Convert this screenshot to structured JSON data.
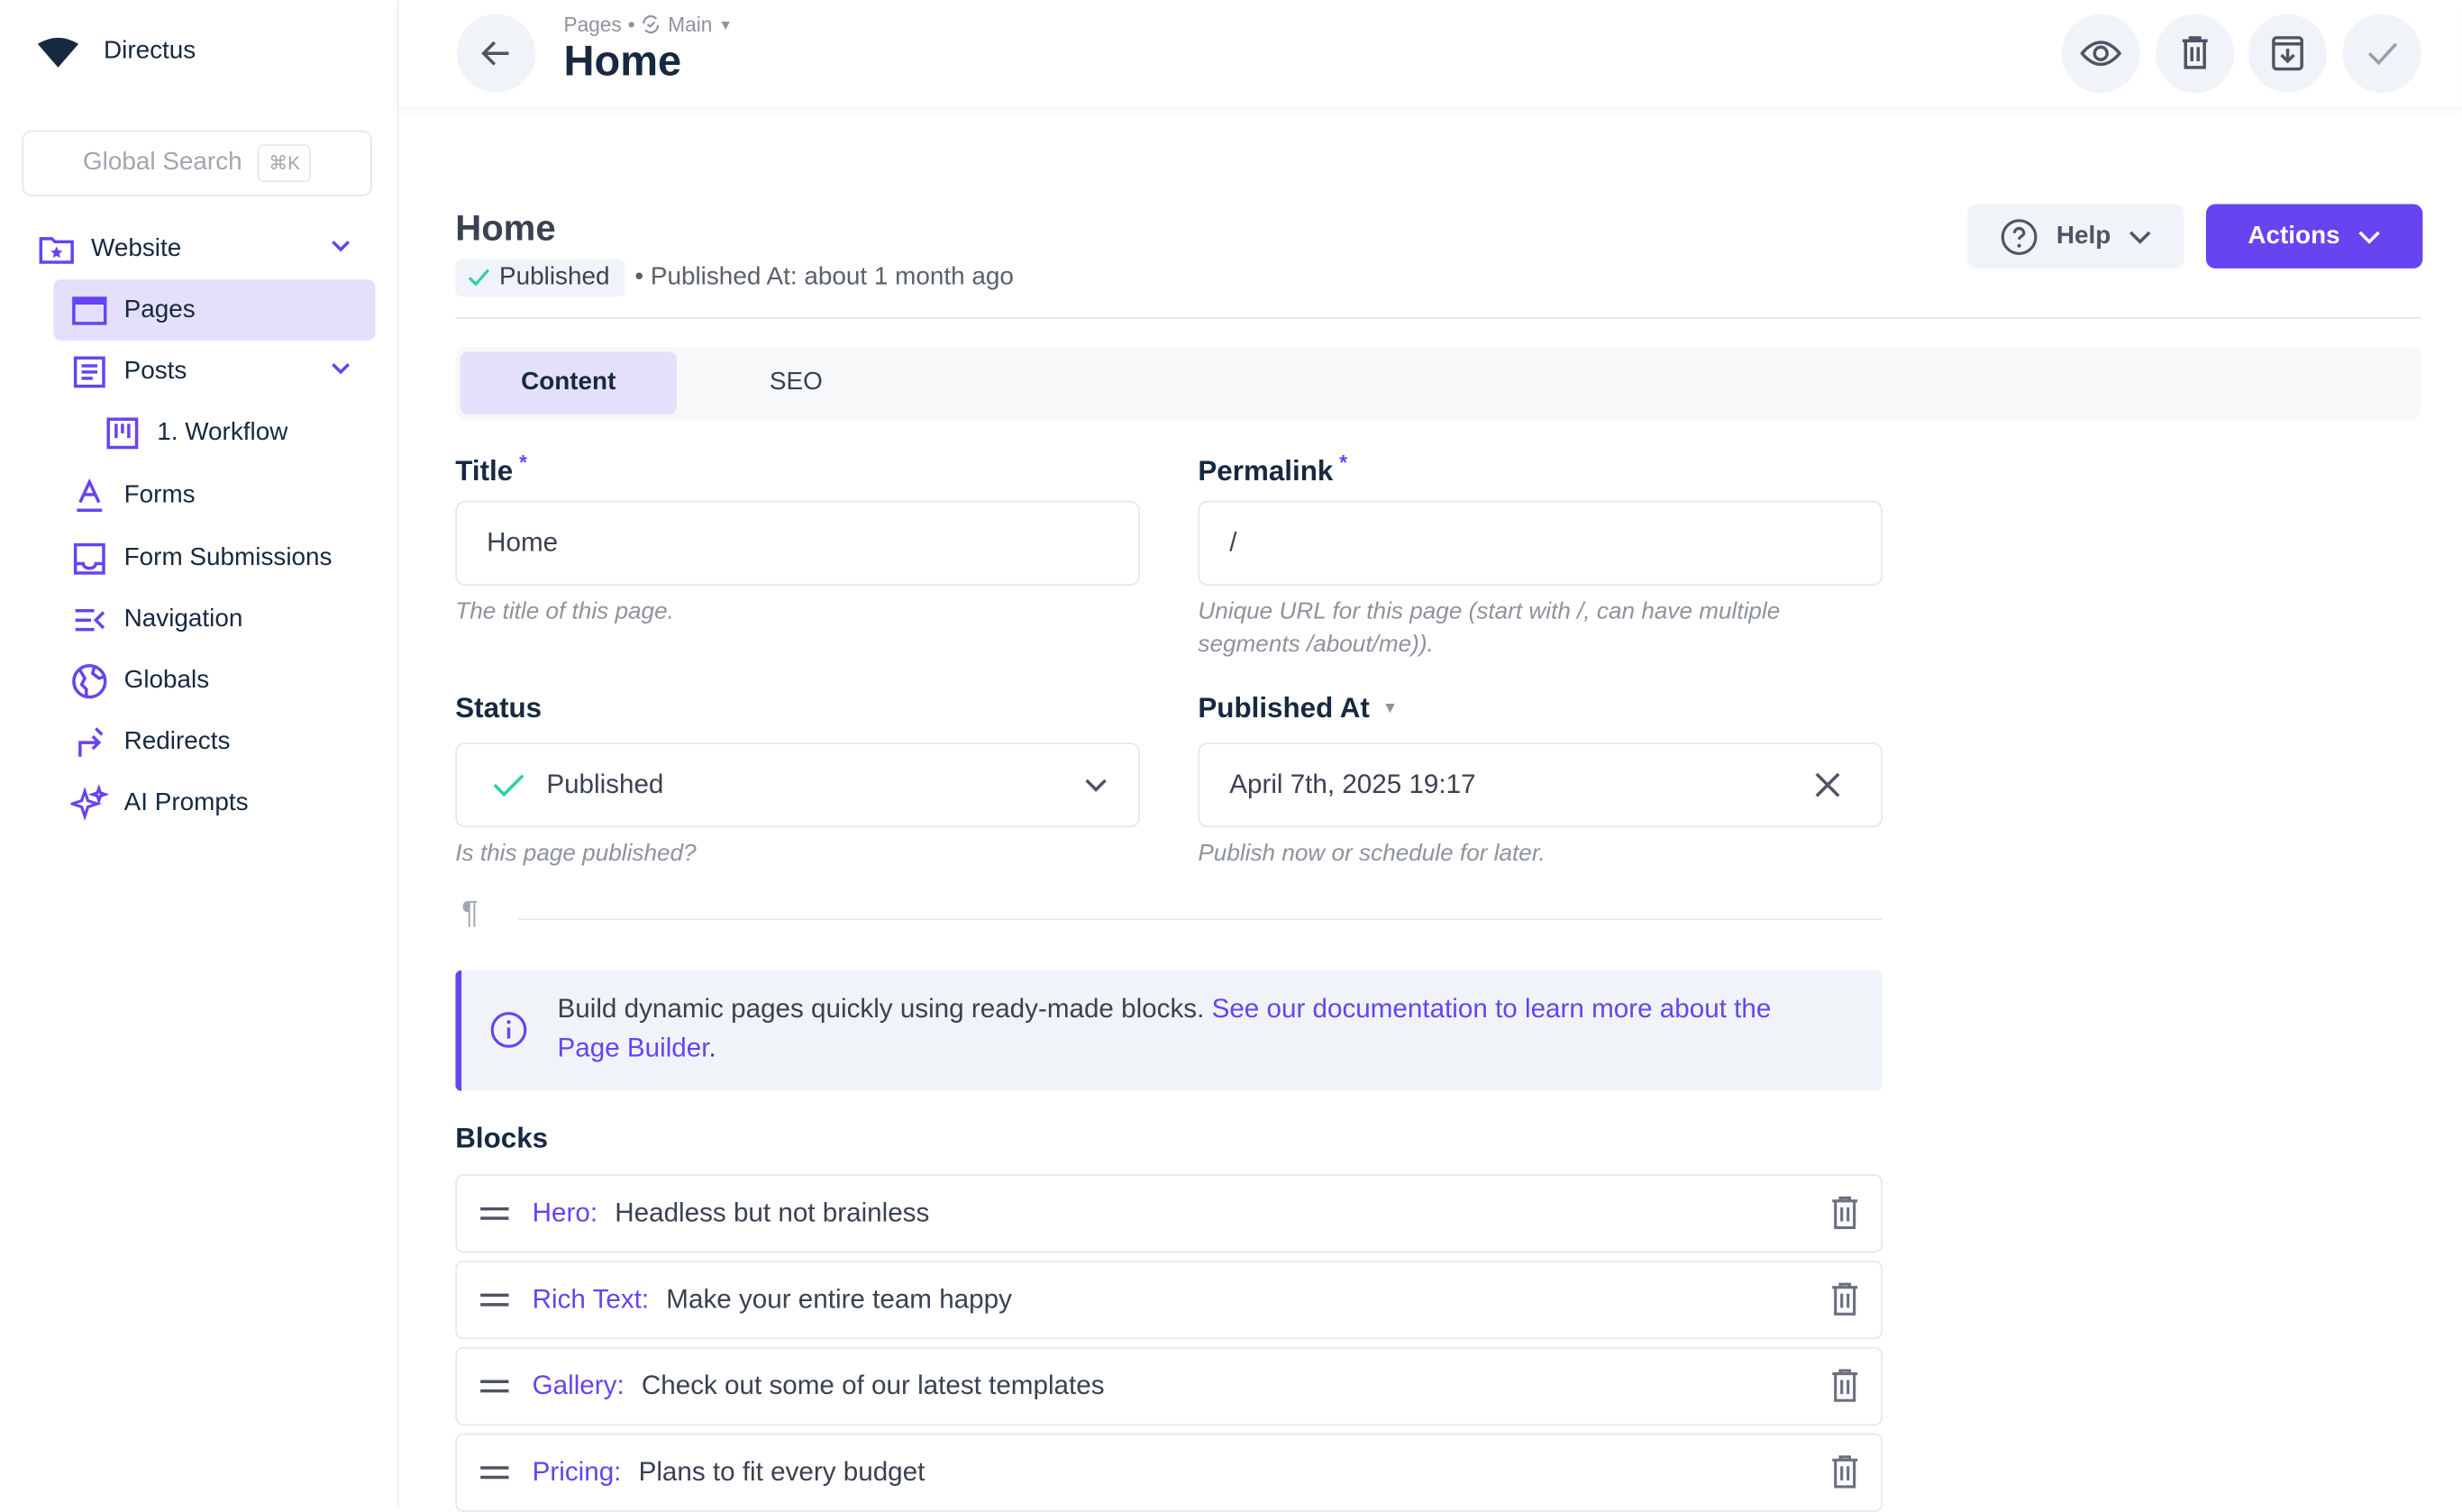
{
  "brand": {
    "name": "Directus"
  },
  "search": {
    "label": "Global Search",
    "shortcut": "⌘K"
  },
  "sidebar": {
    "items": [
      {
        "label": "Website",
        "icon": "folder-special-icon"
      },
      {
        "label": "Pages",
        "icon": "web-asset-icon",
        "active": true
      },
      {
        "label": "Posts",
        "icon": "article-icon"
      },
      {
        "label": "1. Workflow",
        "icon": "kanban-icon"
      },
      {
        "label": "Forms",
        "icon": "format-color-text-icon"
      },
      {
        "label": "Form Submissions",
        "icon": "inbox-icon"
      },
      {
        "label": "Navigation",
        "icon": "menu-open-icon"
      },
      {
        "label": "Globals",
        "icon": "public-icon"
      },
      {
        "label": "Redirects",
        "icon": "turn-right-icon"
      },
      {
        "label": "AI Prompts",
        "icon": "sparkles-icon"
      }
    ]
  },
  "header": {
    "breadcrumb": "Pages",
    "version": "Main",
    "title": "Home"
  },
  "item": {
    "title": "Home",
    "status": "Published",
    "published_meta": "• Published At: about 1 month ago"
  },
  "buttons": {
    "help": "Help",
    "actions": "Actions"
  },
  "tabs": [
    {
      "label": "Content",
      "active": true
    },
    {
      "label": "SEO"
    }
  ],
  "fields": {
    "title": {
      "label": "Title",
      "required": "*",
      "value": "Home",
      "hint": "The title of this page."
    },
    "permalink": {
      "label": "Permalink",
      "required": "*",
      "value": "/",
      "hint": "Unique URL for this page (start with /, can have multiple segments /about/me))."
    },
    "status": {
      "label": "Status",
      "value": "Published",
      "hint": "Is this page published?"
    },
    "published_at": {
      "label": "Published At",
      "value": "April 7th, 2025 19:17",
      "hint": "Publish now or schedule for later."
    }
  },
  "notice": {
    "text": "Build dynamic pages quickly using ready-made blocks.",
    "link": "See our documentation to learn more about the Page Builder",
    "end": "."
  },
  "blocks": {
    "label": "Blocks",
    "items": [
      {
        "type": "Hero:",
        "title": "Headless but not brainless"
      },
      {
        "type": "Rich Text:",
        "title": "Make your entire team happy"
      },
      {
        "type": "Gallery:",
        "title": "Check out some of our latest templates"
      },
      {
        "type": "Pricing:",
        "title": "Plans to fit every budget"
      }
    ]
  },
  "colors": {
    "accent": "#6644f0",
    "success": "#2ecda7"
  }
}
